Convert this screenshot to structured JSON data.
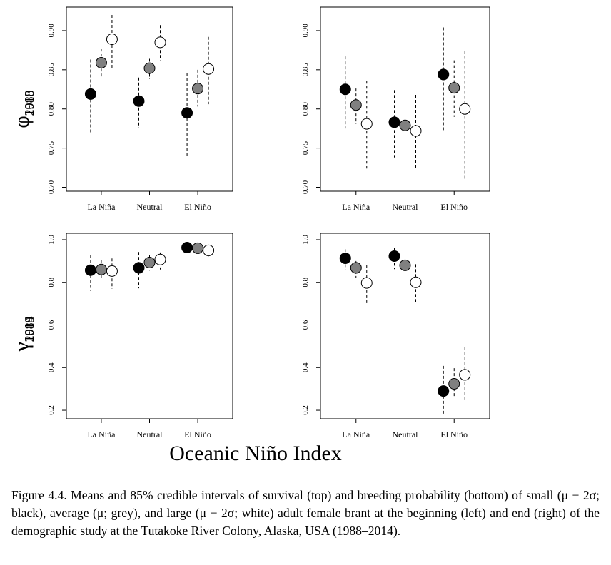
{
  "figure": {
    "x_title": "Oceanic Niño Index",
    "caption": "Figure 4.4. Means and 85% credible intervals of survival (top) and breeding probability (bottom) of small (μ − 2σ; black), average (μ; grey), and large (μ − 2σ; white) adult female brant at the beginning (left) and end (right) of the demographic study at the Tutakoke River Colony, Alaska, USA (1988–2014)."
  },
  "colors": {
    "small": "#000000",
    "average": "#808080",
    "large": "#ffffff",
    "interval": "#000000"
  },
  "chart_data": [
    {
      "id": "phi1988",
      "type": "scatter",
      "ylabel_symbol": "φ",
      "ylabel_sub": "1988",
      "categories": [
        "La Niña",
        "Neutral",
        "El Niño"
      ],
      "ylim": [
        0.695,
        0.93
      ],
      "yticks": [
        "0.70",
        "0.75",
        "0.80",
        "0.85",
        "0.90"
      ],
      "series": [
        {
          "color": "small",
          "means": [
            0.819,
            0.81,
            0.795
          ],
          "lower": [
            0.77,
            0.776,
            0.738
          ],
          "upper": [
            0.863,
            0.84,
            0.846
          ]
        },
        {
          "color": "average",
          "means": [
            0.859,
            0.852,
            0.826
          ],
          "lower": [
            0.84,
            0.838,
            0.803
          ],
          "upper": [
            0.877,
            0.864,
            0.85
          ]
        },
        {
          "color": "large",
          "means": [
            0.889,
            0.885,
            0.851
          ],
          "lower": [
            0.852,
            0.862,
            0.806
          ],
          "upper": [
            0.92,
            0.907,
            0.892
          ]
        }
      ]
    },
    {
      "id": "phi2013",
      "type": "scatter",
      "ylabel_symbol": "φ",
      "ylabel_sub": "2013",
      "categories": [
        "La Niña",
        "Neutral",
        "El Niño"
      ],
      "ylim": [
        0.695,
        0.93
      ],
      "yticks": [
        "0.70",
        "0.75",
        "0.80",
        "0.85",
        "0.90"
      ],
      "series": [
        {
          "color": "small",
          "means": [
            0.825,
            0.783,
            0.844
          ],
          "lower": [
            0.775,
            0.738,
            0.773
          ],
          "upper": [
            0.867,
            0.824,
            0.904
          ]
        },
        {
          "color": "average",
          "means": [
            0.805,
            0.779,
            0.827
          ],
          "lower": [
            0.781,
            0.759,
            0.79
          ],
          "upper": [
            0.826,
            0.796,
            0.862
          ]
        },
        {
          "color": "large",
          "means": [
            0.781,
            0.772,
            0.8
          ],
          "lower": [
            0.722,
            0.723,
            0.71
          ],
          "upper": [
            0.836,
            0.818,
            0.874
          ]
        }
      ]
    },
    {
      "id": "gamma1989",
      "type": "scatter",
      "ylabel_symbol": "γ",
      "ylabel_sub": "1989",
      "categories": [
        "La Niña",
        "Neutral",
        "El Niño"
      ],
      "ylim": [
        0.16,
        1.03
      ],
      "yticks": [
        "0.2",
        "0.4",
        "0.6",
        "0.8",
        "1.0"
      ],
      "series": [
        {
          "color": "small",
          "means": [
            0.857,
            0.868,
            0.963
          ],
          "lower": [
            0.76,
            0.772,
            0.945
          ],
          "upper": [
            0.928,
            0.942,
            0.978
          ]
        },
        {
          "color": "average",
          "means": [
            0.86,
            0.893,
            0.96
          ],
          "lower": [
            0.815,
            0.855,
            0.945
          ],
          "upper": [
            0.905,
            0.927,
            0.972
          ]
        },
        {
          "color": "large",
          "means": [
            0.853,
            0.907,
            0.95
          ],
          "lower": [
            0.77,
            0.86,
            0.92
          ],
          "upper": [
            0.912,
            0.94,
            0.968
          ]
        }
      ]
    },
    {
      "id": "gamma2014",
      "type": "scatter",
      "ylabel_symbol": "γ",
      "ylabel_sub": "2014",
      "categories": [
        "La Niña",
        "Neutral",
        "El Niño"
      ],
      "ylim": [
        0.16,
        1.03
      ],
      "yticks": [
        "0.2",
        "0.4",
        "0.6",
        "0.8",
        "1.0"
      ],
      "series": [
        {
          "color": "small",
          "means": [
            0.913,
            0.923,
            0.29
          ],
          "lower": [
            0.86,
            0.862,
            0.178
          ],
          "upper": [
            0.955,
            0.962,
            0.408
          ]
        },
        {
          "color": "average",
          "means": [
            0.868,
            0.88,
            0.324
          ],
          "lower": [
            0.822,
            0.84,
            0.26
          ],
          "upper": [
            0.9,
            0.918,
            0.397
          ]
        },
        {
          "color": "large",
          "means": [
            0.797,
            0.8,
            0.366
          ],
          "lower": [
            0.698,
            0.7,
            0.24
          ],
          "upper": [
            0.88,
            0.885,
            0.495
          ]
        }
      ]
    }
  ]
}
